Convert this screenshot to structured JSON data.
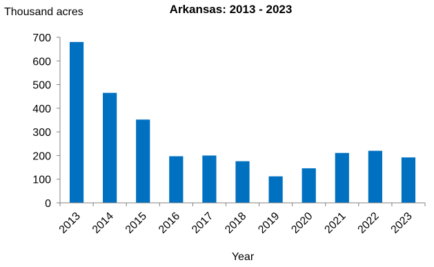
{
  "chart_data": {
    "type": "bar",
    "title": "Arkansas: 2013 - 2023",
    "ylabel": "Thousand acres",
    "xlabel": "Year",
    "ylim": [
      0,
      700
    ],
    "yticks": [
      0,
      100,
      200,
      300,
      400,
      500,
      600,
      700
    ],
    "categories": [
      "2013",
      "2014",
      "2015",
      "2016",
      "2017",
      "2018",
      "2019",
      "2020",
      "2021",
      "2022",
      "2023"
    ],
    "values": [
      680,
      465,
      352,
      197,
      200,
      176,
      112,
      146,
      211,
      220,
      192
    ],
    "bar_color": "#0070C0",
    "grid": false,
    "legend": "none"
  }
}
